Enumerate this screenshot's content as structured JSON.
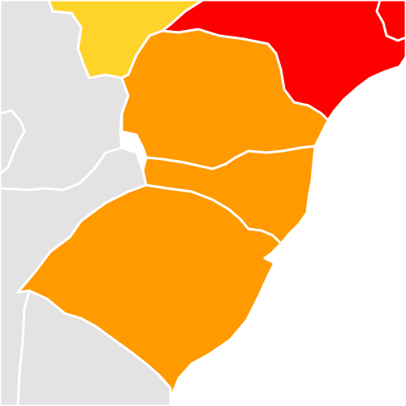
{
  "map": {
    "colors": {
      "ocean": "#ffffff",
      "neighbor": "#e3e3e3",
      "level_orange": "#ff9a00",
      "level_red": "#ff0000",
      "level_yellow": "#ffd42a",
      "border": "#ffffff"
    },
    "regions": [
      {
        "key": "west_land",
        "level": "neighbor"
      },
      {
        "key": "south_land",
        "level": "neighbor"
      },
      {
        "key": "northwest_state",
        "level": "level_yellow"
      },
      {
        "key": "northeast_state",
        "level": "level_red"
      },
      {
        "key": "north_southern_state",
        "level": "level_orange"
      },
      {
        "key": "middle_southern_state",
        "level": "level_orange"
      },
      {
        "key": "south_southern_state",
        "level": "level_orange"
      }
    ]
  }
}
